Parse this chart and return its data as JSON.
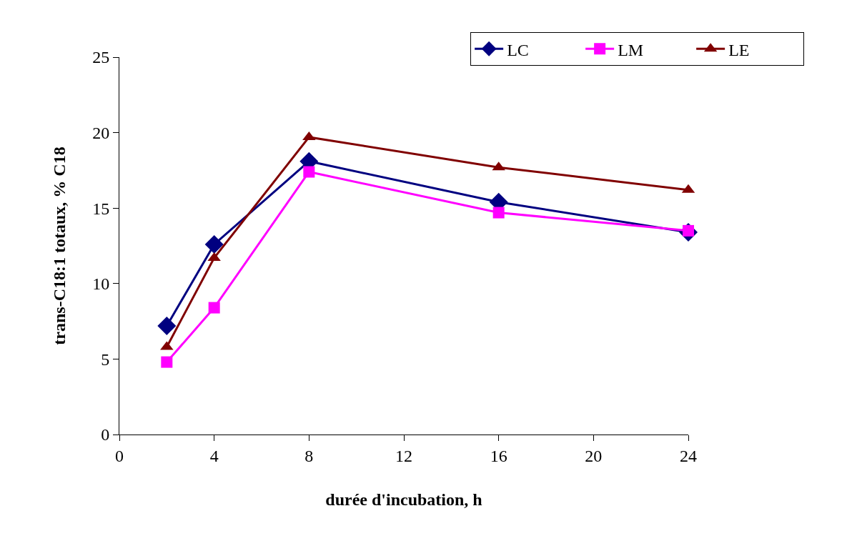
{
  "chart_data": {
    "type": "line",
    "xlabel": "durée d'incubation, h",
    "ylabel": "trans-C18:1 totaux, % C18",
    "x": [
      2,
      4,
      8,
      16,
      24
    ],
    "series": [
      {
        "name": "LC",
        "color": "#000080",
        "values": [
          7.2,
          12.6,
          18.1,
          15.4,
          13.4
        ],
        "marker": "diamond"
      },
      {
        "name": "LM",
        "color": "#ff00ff",
        "values": [
          4.8,
          8.4,
          17.4,
          14.7,
          13.5
        ],
        "marker": "square"
      },
      {
        "name": "LE",
        "color": "#800000",
        "values": [
          5.8,
          11.7,
          19.7,
          17.7,
          16.2
        ],
        "marker": "triangle"
      }
    ],
    "xlim": [
      0,
      24
    ],
    "xticks": [
      0,
      4,
      8,
      12,
      16,
      20,
      24
    ],
    "ylim": [
      0,
      25
    ],
    "yticks": [
      0,
      5,
      10,
      15,
      20,
      25
    ],
    "legend": "top right",
    "line_style": "solid"
  }
}
